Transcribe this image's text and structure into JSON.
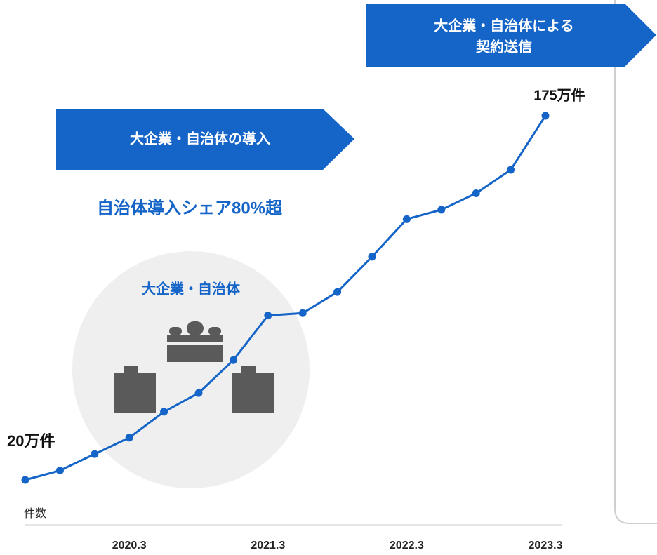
{
  "chart_data": {
    "type": "line",
    "ylabel": "件数",
    "categories": [
      null,
      null,
      null,
      "2020.3",
      null,
      null,
      null,
      "2021.3",
      null,
      null,
      null,
      "2022.3",
      null,
      null,
      null,
      "2023.3"
    ],
    "series": [
      {
        "color": "#1565c8",
        "values": [
          20,
          24,
          31,
          38,
          49,
          57,
          71,
          90,
          91,
          100,
          115,
          131,
          135,
          142,
          152,
          175
        ],
        "value_labels": [
          "20万件",
          null,
          null,
          null,
          null,
          null,
          null,
          null,
          null,
          null,
          null,
          null,
          null,
          null,
          null,
          "175万件"
        ]
      }
    ],
    "annotations": [
      "大企業・自治体の導入",
      "自治体導入シェア80%超",
      "大企業・自治体",
      "大企業・自治体による",
      "契約送信"
    ]
  }
}
